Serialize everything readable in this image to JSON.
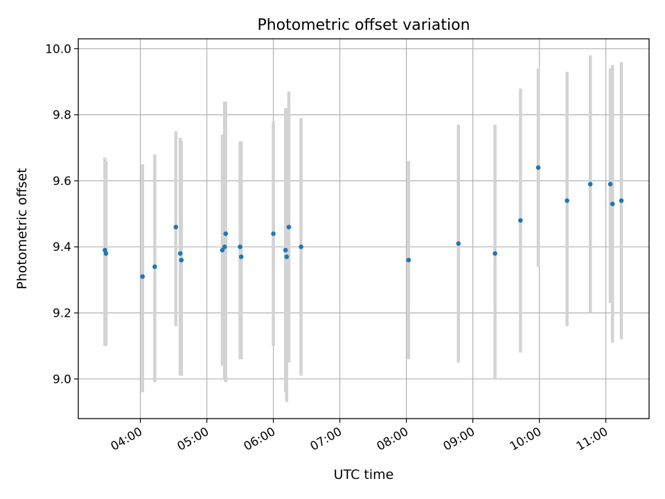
{
  "chart_data": {
    "type": "scatter",
    "title": "Photometric offset variation",
    "xlabel": "UTC time",
    "ylabel": "Photometric offset",
    "x_axis_type": "time",
    "xlim": [
      "03:04",
      "11:39"
    ],
    "ylim": [
      8.88,
      10.03
    ],
    "x_ticks": [
      "04:00",
      "05:00",
      "06:00",
      "07:00",
      "08:00",
      "09:00",
      "10:00",
      "11:00"
    ],
    "y_ticks": [
      9.0,
      9.2,
      9.4,
      9.6,
      9.8,
      10.0
    ],
    "y_tick_labels": [
      "9.0",
      "9.2",
      "9.4",
      "9.6",
      "9.8",
      "10.0"
    ],
    "grid": true,
    "legend": "none",
    "colors": {
      "point": "#1f77b4",
      "errorbar": "#d3d3d3",
      "grid": "#b0b0b0"
    },
    "points": [
      {
        "x": "03:28",
        "y": 9.39,
        "err_low": 9.1,
        "err_high": 9.67
      },
      {
        "x": "03:29",
        "y": 9.38,
        "err_low": 9.1,
        "err_high": 9.66
      },
      {
        "x": "04:02",
        "y": 9.31,
        "err_low": 8.96,
        "err_high": 9.65
      },
      {
        "x": "04:13",
        "y": 9.34,
        "err_low": 8.99,
        "err_high": 9.68
      },
      {
        "x": "04:32",
        "y": 9.46,
        "err_low": 9.16,
        "err_high": 9.75
      },
      {
        "x": "04:36",
        "y": 9.38,
        "err_low": 9.01,
        "err_high": 9.73
      },
      {
        "x": "04:37",
        "y": 9.36,
        "err_low": 9.01,
        "err_high": 9.72
      },
      {
        "x": "05:14",
        "y": 9.39,
        "err_low": 9.04,
        "err_high": 9.74
      },
      {
        "x": "05:16",
        "y": 9.4,
        "err_low": 9.0,
        "err_high": 9.84
      },
      {
        "x": "05:17",
        "y": 9.44,
        "err_low": 8.99,
        "err_high": 9.84
      },
      {
        "x": "05:30",
        "y": 9.4,
        "err_low": 9.06,
        "err_high": 9.72
      },
      {
        "x": "05:31",
        "y": 9.37,
        "err_low": 9.06,
        "err_high": 9.72
      },
      {
        "x": "06:00",
        "y": 9.44,
        "err_low": 9.1,
        "err_high": 9.78
      },
      {
        "x": "06:11",
        "y": 9.39,
        "err_low": 8.96,
        "err_high": 9.82
      },
      {
        "x": "06:12",
        "y": 9.37,
        "err_low": 8.93,
        "err_high": 9.82
      },
      {
        "x": "06:14",
        "y": 9.46,
        "err_low": 9.05,
        "err_high": 9.87
      },
      {
        "x": "06:25",
        "y": 9.4,
        "err_low": 9.01,
        "err_high": 9.79
      },
      {
        "x": "08:02",
        "y": 9.36,
        "err_low": 9.06,
        "err_high": 9.66
      },
      {
        "x": "08:47",
        "y": 9.41,
        "err_low": 9.05,
        "err_high": 9.77
      },
      {
        "x": "09:20",
        "y": 9.38,
        "err_low": 9.0,
        "err_high": 9.77
      },
      {
        "x": "09:43",
        "y": 9.48,
        "err_low": 9.08,
        "err_high": 9.88
      },
      {
        "x": "09:59",
        "y": 9.64,
        "err_low": 9.34,
        "err_high": 9.94
      },
      {
        "x": "10:25",
        "y": 9.54,
        "err_low": 9.16,
        "err_high": 9.93
      },
      {
        "x": "10:46",
        "y": 9.59,
        "err_low": 9.2,
        "err_high": 9.98
      },
      {
        "x": "11:04",
        "y": 9.59,
        "err_low": 9.23,
        "err_high": 9.94
      },
      {
        "x": "11:06",
        "y": 9.53,
        "err_low": 9.11,
        "err_high": 9.95
      },
      {
        "x": "11:14",
        "y": 9.54,
        "err_low": 9.12,
        "err_high": 9.96
      }
    ]
  }
}
